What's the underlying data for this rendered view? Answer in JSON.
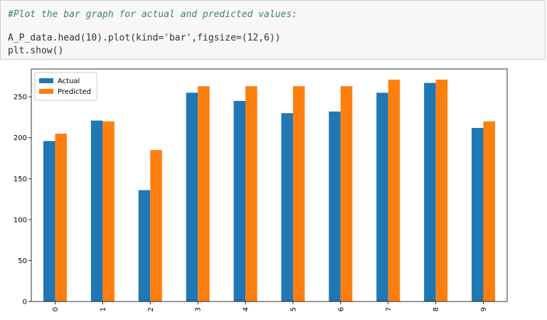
{
  "code": {
    "comment": "#Plot the bar graph for actual and predicted values:",
    "line1": "A_P_data.head(10).plot(kind='bar',figsize=(12,6))",
    "line2": "plt.show()"
  },
  "chart_data": {
    "type": "bar",
    "categories": [
      "0",
      "1",
      "2",
      "3",
      "4",
      "5",
      "6",
      "7",
      "8",
      "9"
    ],
    "series": [
      {
        "name": "Actual",
        "color": "#1f77b4",
        "values": [
          196,
          221,
          136,
          255,
          245,
          230,
          232,
          255,
          267,
          212
        ]
      },
      {
        "name": "Predicted",
        "color": "#ff7f0e",
        "values": [
          205,
          220,
          185,
          263,
          263,
          263,
          263,
          271,
          271,
          220
        ]
      }
    ],
    "yticks": [
      0,
      50,
      100,
      150,
      200,
      250
    ],
    "ylim": [
      0,
      284
    ],
    "legend": "top-left",
    "grid": false,
    "xtick_rotation": 90
  }
}
